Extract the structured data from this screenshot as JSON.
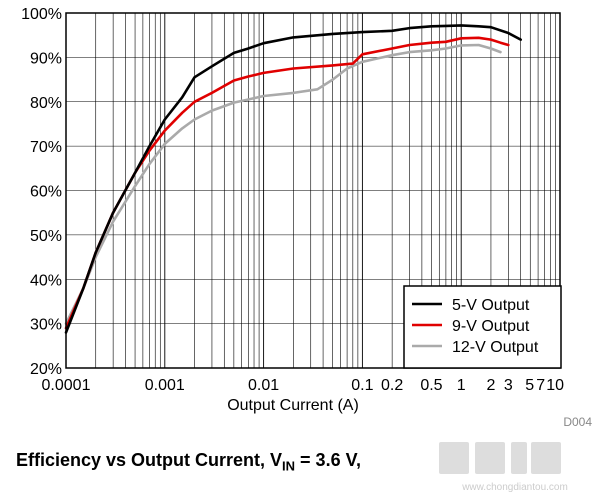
{
  "chart_data": {
    "type": "line",
    "xlabel": "Output Current (A)",
    "ylabel": "",
    "xscale": "log",
    "xlim": [
      0.0001,
      10
    ],
    "ylim": [
      20,
      100
    ],
    "grid": true,
    "legend_position": "bottom-right",
    "x_tick_labels": [
      {
        "value": 0.0001,
        "label": "0.0001"
      },
      {
        "value": 0.001,
        "label": "0.001"
      },
      {
        "value": 0.01,
        "label": "0.01"
      },
      {
        "value": 0.1,
        "label": "0.1"
      },
      {
        "value": 0.2,
        "label": "0.2"
      },
      {
        "value": 0.5,
        "label": "0.5"
      },
      {
        "value": 1,
        "label": "1"
      },
      {
        "value": 2,
        "label": "2"
      },
      {
        "value": 3,
        "label": "3"
      },
      {
        "value": 5,
        "label": "5"
      },
      {
        "value": 7,
        "label": "7"
      },
      {
        "value": 10,
        "label": "10"
      }
    ],
    "y_ticks": [
      20,
      30,
      40,
      50,
      60,
      70,
      80,
      90,
      100
    ],
    "y_tick_labels": [
      "20%",
      "30%",
      "40%",
      "50%",
      "60%",
      "70%",
      "80%",
      "90%",
      "100%"
    ],
    "series": [
      {
        "name": "5-V Output",
        "color": "#000000",
        "x": [
          0.0001,
          0.00015,
          0.0002,
          0.0003,
          0.0005,
          0.0007,
          0.001,
          0.0015,
          0.002,
          0.003,
          0.005,
          0.007,
          0.01,
          0.02,
          0.05,
          0.1,
          0.2,
          0.3,
          0.5,
          0.7,
          1,
          1.5,
          2,
          3,
          4
        ],
        "y": [
          28,
          38,
          46,
          55,
          64,
          70,
          76,
          81,
          85.5,
          88,
          91,
          92,
          93.2,
          94.5,
          95.3,
          95.7,
          96,
          96.6,
          97,
          97.1,
          97.2,
          97,
          96.8,
          95.5,
          94
        ]
      },
      {
        "name": "9-V Output",
        "color": "#e00000",
        "x": [
          0.0001,
          0.00015,
          0.0002,
          0.0003,
          0.0005,
          0.0007,
          0.001,
          0.0015,
          0.002,
          0.003,
          0.005,
          0.007,
          0.01,
          0.02,
          0.05,
          0.08,
          0.1,
          0.2,
          0.3,
          0.5,
          0.7,
          1,
          1.5,
          2,
          2.5,
          3
        ],
        "y": [
          29,
          38,
          46,
          55,
          64,
          69,
          73.5,
          77.5,
          80,
          82,
          84.8,
          85.7,
          86.5,
          87.5,
          88.2,
          88.6,
          90.7,
          92,
          92.8,
          93.3,
          93.5,
          94.3,
          94.4,
          94,
          93.3,
          92.8
        ]
      },
      {
        "name": "12-V Output",
        "color": "#aaaaaa",
        "x": [
          0.0001,
          0.00015,
          0.0002,
          0.0003,
          0.0005,
          0.0007,
          0.001,
          0.0015,
          0.002,
          0.003,
          0.005,
          0.007,
          0.01,
          0.02,
          0.035,
          0.05,
          0.07,
          0.1,
          0.2,
          0.3,
          0.5,
          0.7,
          1,
          1.5,
          2,
          2.5
        ],
        "y": [
          30,
          38,
          45,
          53,
          61,
          66,
          70.5,
          74,
          76,
          78,
          79.8,
          80.5,
          81.3,
          82,
          82.8,
          85,
          87.5,
          89,
          90.5,
          91.2,
          91.6,
          92,
          92.7,
          92.8,
          92,
          91.2
        ]
      }
    ]
  },
  "caption": {
    "prefix": "Efficiency vs Output Current, V",
    "subscript": "IN",
    "suffix": " = 3.6 V,"
  },
  "figure_id": "D004",
  "watermark": {
    "text": "www.chongdiantou.com"
  }
}
